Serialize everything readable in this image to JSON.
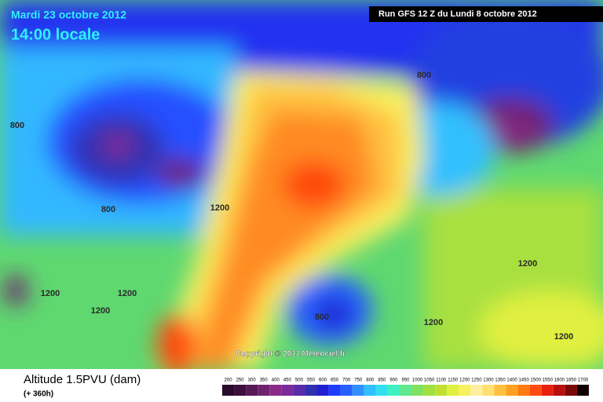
{
  "header": {
    "date": "Mardi 23 octobre 2012",
    "time": "14:00 locale",
    "run": "Run GFS 12 Z du Lundi 8 octobre 2012"
  },
  "map": {
    "contour_labels": [
      "800",
      "800",
      "800",
      "800",
      "1200",
      "1200",
      "1200",
      "1200",
      "1200",
      "1200",
      "1200"
    ],
    "copyright": "Copyright © 2011 Meteociel.fr"
  },
  "footer": {
    "variable": "Altitude 1.5PVU (dam)",
    "lead": "(+ 360h)"
  },
  "legend": {
    "values": [
      200,
      250,
      300,
      350,
      400,
      450,
      500,
      550,
      600,
      650,
      700,
      750,
      800,
      850,
      900,
      950,
      1000,
      1050,
      1100,
      1150,
      1200,
      1250,
      1300,
      1350,
      1400,
      1450,
      1500,
      1550,
      1600,
      1650,
      1700
    ],
    "colors": [
      "#2a0a2a",
      "#3c0f3c",
      "#551a55",
      "#6e236e",
      "#8a2b8a",
      "#7a2a9a",
      "#5a2aa8",
      "#3030b0",
      "#2020d0",
      "#1e3cff",
      "#2860ff",
      "#3090ff",
      "#30c0ff",
      "#30e0f0",
      "#40f0c0",
      "#60e890",
      "#80e060",
      "#a0e040",
      "#c0e030",
      "#e0f040",
      "#f8f060",
      "#fff0a0",
      "#ffe070",
      "#ffc040",
      "#ffa020",
      "#ff7a10",
      "#ff4a10",
      "#e82010",
      "#b81010",
      "#7a0808",
      "#100000"
    ]
  }
}
